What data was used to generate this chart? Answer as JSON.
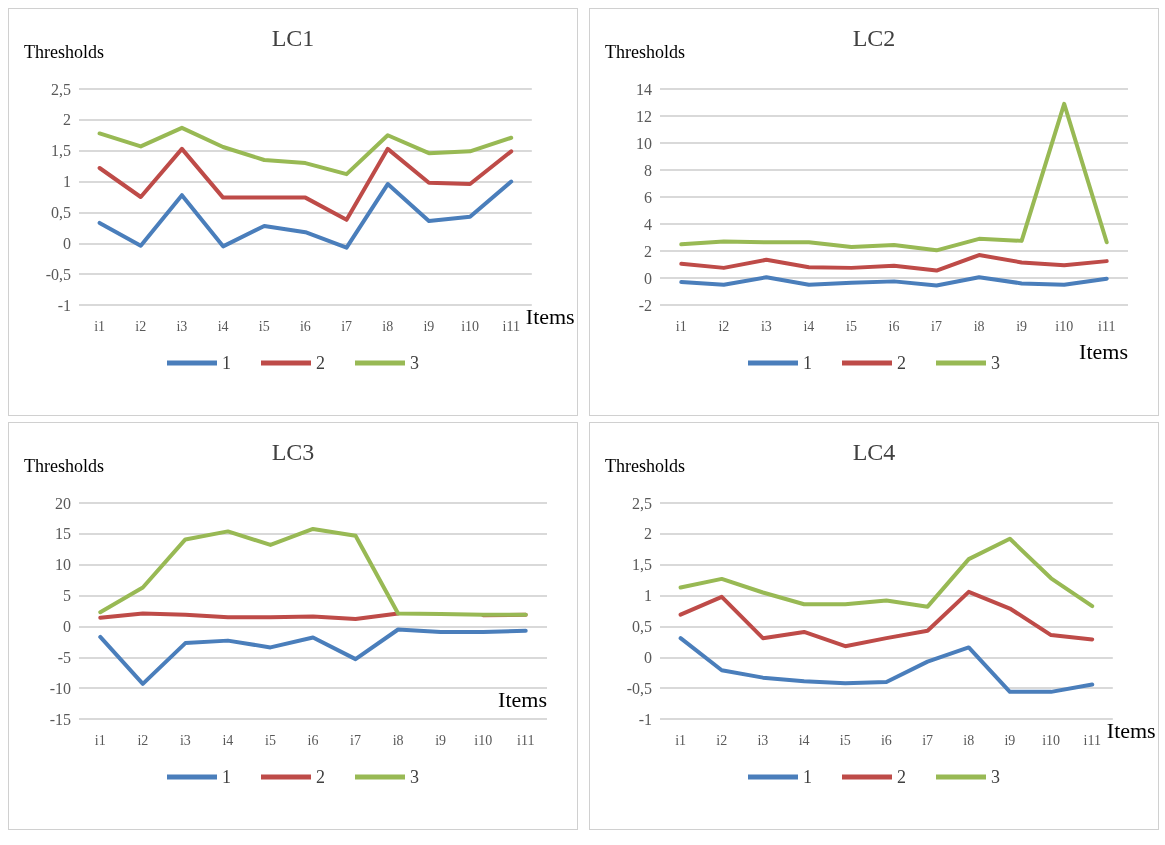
{
  "chart_data": [
    {
      "type": "line",
      "title": "LC1",
      "ylabel": "Thresholds",
      "xlabel": "Items",
      "categories": [
        "i1",
        "i2",
        "i3",
        "i4",
        "i5",
        "i6",
        "i7",
        "i8",
        "i9",
        "i10",
        "i11"
      ],
      "series": [
        {
          "name": "1",
          "color": "#4a7ebb",
          "values": [
            0.33,
            -0.04,
            0.78,
            -0.05,
            0.28,
            0.18,
            -0.07,
            0.96,
            0.36,
            0.43,
            1.0
          ]
        },
        {
          "name": "2",
          "color": "#be4b48",
          "values": [
            1.22,
            0.75,
            1.53,
            0.74,
            0.74,
            0.74,
            0.38,
            1.53,
            0.98,
            0.96,
            1.49
          ]
        },
        {
          "name": "3",
          "color": "#98b954",
          "values": [
            1.78,
            1.57,
            1.87,
            1.56,
            1.35,
            1.3,
            1.12,
            1.75,
            1.46,
            1.49,
            1.71
          ]
        }
      ],
      "ylim": [
        -1,
        2.5
      ],
      "yticks": [
        -1,
        {
          "value": -0.5,
          "label": "-0,5"
        },
        0,
        {
          "value": 0.5,
          "label": "0,5"
        },
        1,
        {
          "value": 1.5,
          "label": "1,5"
        },
        2,
        {
          "value": 2.5,
          "label": "2,5"
        }
      ],
      "grid": "y",
      "legend": "bottom",
      "marker": "none",
      "line_style": "solid"
    },
    {
      "type": "line",
      "title": "LC2",
      "ylabel": "Thresholds",
      "xlabel": "Items",
      "categories": [
        "i1",
        "i2",
        "i3",
        "i4",
        "i5",
        "i6",
        "i7",
        "i8",
        "i9",
        "i10",
        "i11"
      ],
      "series": [
        {
          "name": "1",
          "color": "#4a7ebb",
          "values": [
            -0.3,
            -0.5,
            0.05,
            -0.5,
            -0.35,
            -0.25,
            -0.55,
            0.05,
            -0.4,
            -0.5,
            -0.05
          ]
        },
        {
          "name": "2",
          "color": "#be4b48",
          "values": [
            1.05,
            0.75,
            1.35,
            0.8,
            0.75,
            0.9,
            0.55,
            1.7,
            1.15,
            0.95,
            1.25
          ]
        },
        {
          "name": "3",
          "color": "#98b954",
          "values": [
            2.5,
            2.7,
            2.65,
            2.65,
            2.3,
            2.45,
            2.05,
            2.9,
            2.75,
            12.9,
            2.65
          ]
        }
      ],
      "ylim": [
        -2,
        14
      ],
      "yticks": [
        -2,
        0,
        2,
        4,
        6,
        8,
        10,
        12,
        14
      ],
      "grid": "y",
      "legend": "bottom",
      "marker": "none",
      "line_style": "solid"
    },
    {
      "type": "line",
      "title": "LC3",
      "ylabel": "Thresholds",
      "xlabel": "Items",
      "categories": [
        "i1",
        "i2",
        "i3",
        "i4",
        "i5",
        "i6",
        "i7",
        "i8",
        "i9",
        "i10",
        "i11"
      ],
      "series": [
        {
          "name": "1",
          "color": "#4a7ebb",
          "values": [
            -1.7,
            -9.3,
            -2.7,
            -2.3,
            -3.4,
            -1.8,
            -5.3,
            -0.5,
            -0.9,
            -0.9,
            -0.7
          ]
        },
        {
          "name": "2",
          "color": "#be4b48",
          "values": [
            1.4,
            2.1,
            1.9,
            1.5,
            1.5,
            1.6,
            1.2,
            2.1,
            null,
            1.8,
            1.9
          ]
        },
        {
          "name": "3",
          "color": "#98b954",
          "values": [
            2.3,
            6.3,
            14.1,
            15.4,
            13.2,
            15.8,
            14.7,
            2.1,
            2.0,
            1.9,
            1.9
          ]
        }
      ],
      "ylim": [
        -15,
        20
      ],
      "yticks": [
        -15,
        -10,
        -5,
        0,
        5,
        10,
        15,
        20
      ],
      "grid": "y",
      "legend": "bottom",
      "marker": "none",
      "line_style": "solid"
    },
    {
      "type": "line",
      "title": "LC4",
      "ylabel": "Thresholds",
      "xlabel": "Items",
      "categories": [
        "i1",
        "i2",
        "i3",
        "i4",
        "i5",
        "i6",
        "i7",
        "i8",
        "i9",
        "i10",
        "i11"
      ],
      "series": [
        {
          "name": "1",
          "color": "#4a7ebb",
          "values": [
            0.31,
            -0.21,
            -0.33,
            -0.39,
            -0.42,
            -0.4,
            -0.07,
            0.16,
            -0.56,
            -0.56,
            -0.44
          ]
        },
        {
          "name": "2",
          "color": "#be4b48",
          "values": [
            0.69,
            0.98,
            0.31,
            0.41,
            0.18,
            0.31,
            0.43,
            1.06,
            0.79,
            0.36,
            0.29
          ]
        },
        {
          "name": "3",
          "color": "#98b954",
          "values": [
            1.13,
            1.27,
            1.05,
            0.86,
            0.86,
            0.92,
            0.82,
            1.59,
            1.92,
            1.28,
            0.83
          ]
        }
      ],
      "ylim": [
        -1,
        2.5
      ],
      "yticks": [
        -1,
        {
          "value": -0.5,
          "label": "-0,5"
        },
        0,
        {
          "value": 0.5,
          "label": "0,5"
        },
        1,
        {
          "value": 1.5,
          "label": "1,5"
        },
        2,
        {
          "value": 2.5,
          "label": "2,5"
        }
      ],
      "grid": "y",
      "legend": "bottom",
      "marker": "none",
      "line_style": "solid"
    }
  ]
}
